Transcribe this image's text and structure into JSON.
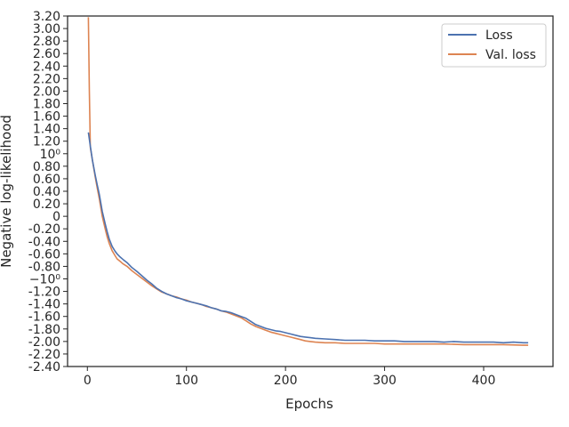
{
  "chart_data": {
    "type": "line",
    "title": "",
    "xlabel": "Epochs",
    "ylabel": "Negative log-likelihood",
    "xlim": [
      -20,
      470
    ],
    "ylim": [
      -2.4,
      3.2
    ],
    "y_scale": "symlog (linthresh 1)",
    "grid": false,
    "legend_position": "upper right",
    "x_ticks": [
      0,
      100,
      200,
      300,
      400
    ],
    "x_tick_labels": [
      "0",
      "100",
      "200",
      "300",
      "400"
    ],
    "y_ticks": [
      3.2,
      3.0,
      2.8,
      2.6,
      2.4,
      2.2,
      2.0,
      1.8,
      1.6,
      1.4,
      1.2,
      1.0,
      0.8,
      0.6,
      0.4,
      0.2,
      0,
      -0.2,
      -0.4,
      -0.6,
      -0.8,
      -1.0,
      -1.2,
      -1.4,
      -1.6,
      -1.8,
      -2.0,
      -2.2,
      -2.4
    ],
    "y_tick_labels": [
      "3.20",
      "3.00",
      "2.80",
      "2.60",
      "2.40",
      "2.20",
      "2.00",
      "1.80",
      "1.60",
      "1.40",
      "1.20",
      "10⁰",
      "0.80",
      "0.60",
      "0.40",
      "0.20",
      "0",
      "-0.20",
      "-0.40",
      "-0.60",
      "-0.80",
      "−10⁰",
      "-1.20",
      "-1.40",
      "-1.60",
      "-1.80",
      "-2.00",
      "-2.20",
      "-2.40"
    ],
    "series": [
      {
        "name": "Loss",
        "color": "#4c72b0",
        "x": [
          1,
          3,
          5,
          8,
          10,
          12,
          15,
          18,
          20,
          22,
          25,
          28,
          30,
          33,
          36,
          40,
          45,
          50,
          55,
          60,
          65,
          70,
          75,
          80,
          85,
          90,
          95,
          100,
          105,
          110,
          115,
          120,
          125,
          130,
          135,
          140,
          145,
          150,
          155,
          160,
          165,
          170,
          175,
          180,
          185,
          190,
          195,
          200,
          205,
          210,
          215,
          220,
          225,
          230,
          240,
          250,
          260,
          270,
          280,
          290,
          300,
          310,
          320,
          330,
          340,
          350,
          360,
          370,
          380,
          390,
          400,
          410,
          420,
          430,
          440,
          445
        ],
        "y": [
          1.34,
          1.12,
          0.9,
          0.65,
          0.5,
          0.35,
          0.08,
          -0.12,
          -0.25,
          -0.36,
          -0.48,
          -0.56,
          -0.6,
          -0.65,
          -0.69,
          -0.74,
          -0.82,
          -0.88,
          -0.95,
          -1.02,
          -1.08,
          -1.15,
          -1.2,
          -1.24,
          -1.27,
          -1.3,
          -1.32,
          -1.35,
          -1.37,
          -1.39,
          -1.41,
          -1.43,
          -1.46,
          -1.48,
          -1.51,
          -1.52,
          -1.54,
          -1.57,
          -1.6,
          -1.63,
          -1.68,
          -1.73,
          -1.76,
          -1.79,
          -1.81,
          -1.83,
          -1.84,
          -1.86,
          -1.88,
          -1.9,
          -1.92,
          -1.93,
          -1.94,
          -1.95,
          -1.96,
          -1.97,
          -1.98,
          -1.98,
          -1.98,
          -1.99,
          -1.99,
          -1.99,
          -2.0,
          -2.0,
          -2.0,
          -2.0,
          -2.01,
          -2.0,
          -2.01,
          -2.01,
          -2.01,
          -2.01,
          -2.02,
          -2.01,
          -2.02,
          -2.02
        ]
      },
      {
        "name": "Val. loss",
        "color": "#dd8452",
        "x": [
          1,
          2,
          3,
          5,
          8,
          10,
          12,
          15,
          18,
          20,
          22,
          25,
          28,
          30,
          33,
          36,
          40,
          45,
          50,
          55,
          60,
          65,
          70,
          75,
          80,
          85,
          90,
          95,
          100,
          105,
          110,
          115,
          120,
          125,
          130,
          135,
          140,
          145,
          150,
          155,
          160,
          165,
          170,
          175,
          180,
          185,
          190,
          195,
          200,
          205,
          210,
          215,
          220,
          225,
          230,
          240,
          250,
          260,
          270,
          280,
          290,
          300,
          320,
          340,
          360,
          380,
          400,
          420,
          440,
          445
        ],
        "y": [
          3.18,
          2.0,
          1.1,
          0.9,
          0.62,
          0.45,
          0.28,
          0.0,
          -0.2,
          -0.33,
          -0.43,
          -0.55,
          -0.63,
          -0.68,
          -0.72,
          -0.76,
          -0.8,
          -0.87,
          -0.93,
          -0.99,
          -1.05,
          -1.11,
          -1.16,
          -1.21,
          -1.24,
          -1.27,
          -1.29,
          -1.32,
          -1.34,
          -1.37,
          -1.39,
          -1.41,
          -1.44,
          -1.46,
          -1.48,
          -1.51,
          -1.53,
          -1.56,
          -1.59,
          -1.62,
          -1.67,
          -1.72,
          -1.76,
          -1.79,
          -1.82,
          -1.85,
          -1.87,
          -1.89,
          -1.91,
          -1.93,
          -1.95,
          -1.97,
          -1.99,
          -2.0,
          -2.01,
          -2.02,
          -2.02,
          -2.03,
          -2.03,
          -2.03,
          -2.03,
          -2.04,
          -2.04,
          -2.04,
          -2.04,
          -2.05,
          -2.05,
          -2.05,
          -2.06,
          -2.06
        ]
      }
    ]
  }
}
